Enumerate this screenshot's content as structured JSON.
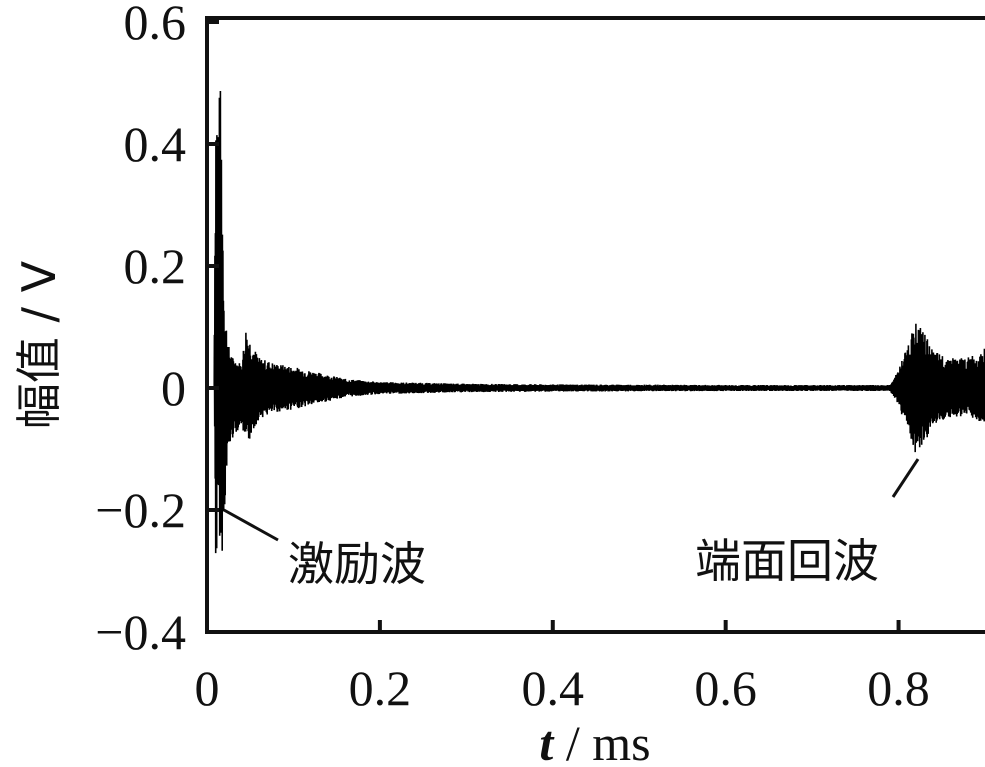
{
  "chart_data": {
    "type": "line",
    "xlabel_var": "t",
    "xlabel_unit": " / ms",
    "ylabel": "幅值 / V",
    "xlim": [
      0,
      0.9
    ],
    "ylim": [
      -0.4,
      0.6
    ],
    "xticks": [
      "0",
      "0.2",
      "0.4",
      "0.6",
      "0.8"
    ],
    "xtick_values": [
      0,
      0.2,
      0.4,
      0.6,
      0.8
    ],
    "yticks": [
      "0.6",
      "0.4",
      "0.2",
      "0",
      "−0.2",
      "−0.4"
    ],
    "ytick_values": [
      0.6,
      0.4,
      0.2,
      0,
      -0.2,
      -0.4
    ],
    "grid": false,
    "series": [
      {
        "envelope": {
          "t": [
            0.008,
            0.01,
            0.013,
            0.016,
            0.02,
            0.025,
            0.03,
            0.04,
            0.045,
            0.05,
            0.06,
            0.08,
            0.1,
            0.13,
            0.16,
            0.2,
            0.3,
            0.4,
            0.6,
            0.79,
            0.8,
            0.81,
            0.82,
            0.83,
            0.84,
            0.86,
            0.88,
            0.9
          ],
          "max": [
            0.0,
            0.5,
            0.48,
            0.5,
            0.14,
            0.07,
            0.05,
            0.04,
            0.1,
            0.08,
            0.05,
            0.04,
            0.035,
            0.025,
            0.015,
            0.01,
            0.007,
            0.006,
            0.005,
            0.005,
            0.03,
            0.07,
            0.11,
            0.09,
            0.06,
            0.05,
            0.05,
            0.065
          ],
          "min": [
            0.0,
            -0.33,
            -0.2,
            -0.3,
            -0.2,
            -0.1,
            -0.08,
            -0.06,
            -0.11,
            -0.08,
            -0.05,
            -0.04,
            -0.035,
            -0.025,
            -0.015,
            -0.01,
            -0.007,
            -0.006,
            -0.005,
            -0.005,
            -0.03,
            -0.07,
            -0.11,
            -0.1,
            -0.06,
            -0.05,
            -0.045,
            -0.06
          ]
        }
      }
    ],
    "annotations": [
      {
        "text": "激励波",
        "point": [
          0.015,
          -0.2
        ]
      },
      {
        "text": "端面回波",
        "point": [
          0.826,
          -0.11
        ]
      }
    ]
  }
}
